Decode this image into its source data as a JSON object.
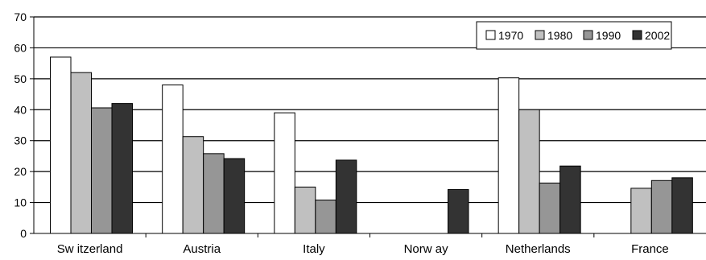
{
  "chart_data": {
    "type": "bar",
    "categories": [
      "Sw itzerland",
      "Austria",
      "Italy",
      "Norw ay",
      "Netherlands",
      "France"
    ],
    "series": [
      {
        "name": "1970",
        "values": [
          57,
          48,
          39,
          null,
          50.3,
          null
        ],
        "color": "#ffffff"
      },
      {
        "name": "1980",
        "values": [
          52,
          31.3,
          15,
          null,
          40,
          14.6
        ],
        "color": "#c0c0c0"
      },
      {
        "name": "1990",
        "values": [
          40.6,
          25.8,
          10.8,
          null,
          16.3,
          17.1
        ],
        "color": "#969696"
      },
      {
        "name": "2002",
        "values": [
          42,
          24.2,
          23.7,
          14.2,
          21.8,
          18
        ],
        "color": "#333333"
      }
    ],
    "yticks": [
      0,
      10,
      20,
      30,
      40,
      50,
      60,
      70
    ],
    "ylim": [
      0,
      70
    ],
    "grid": true,
    "legend_position": "top-right",
    "title": "",
    "xlabel": "",
    "ylabel": ""
  }
}
